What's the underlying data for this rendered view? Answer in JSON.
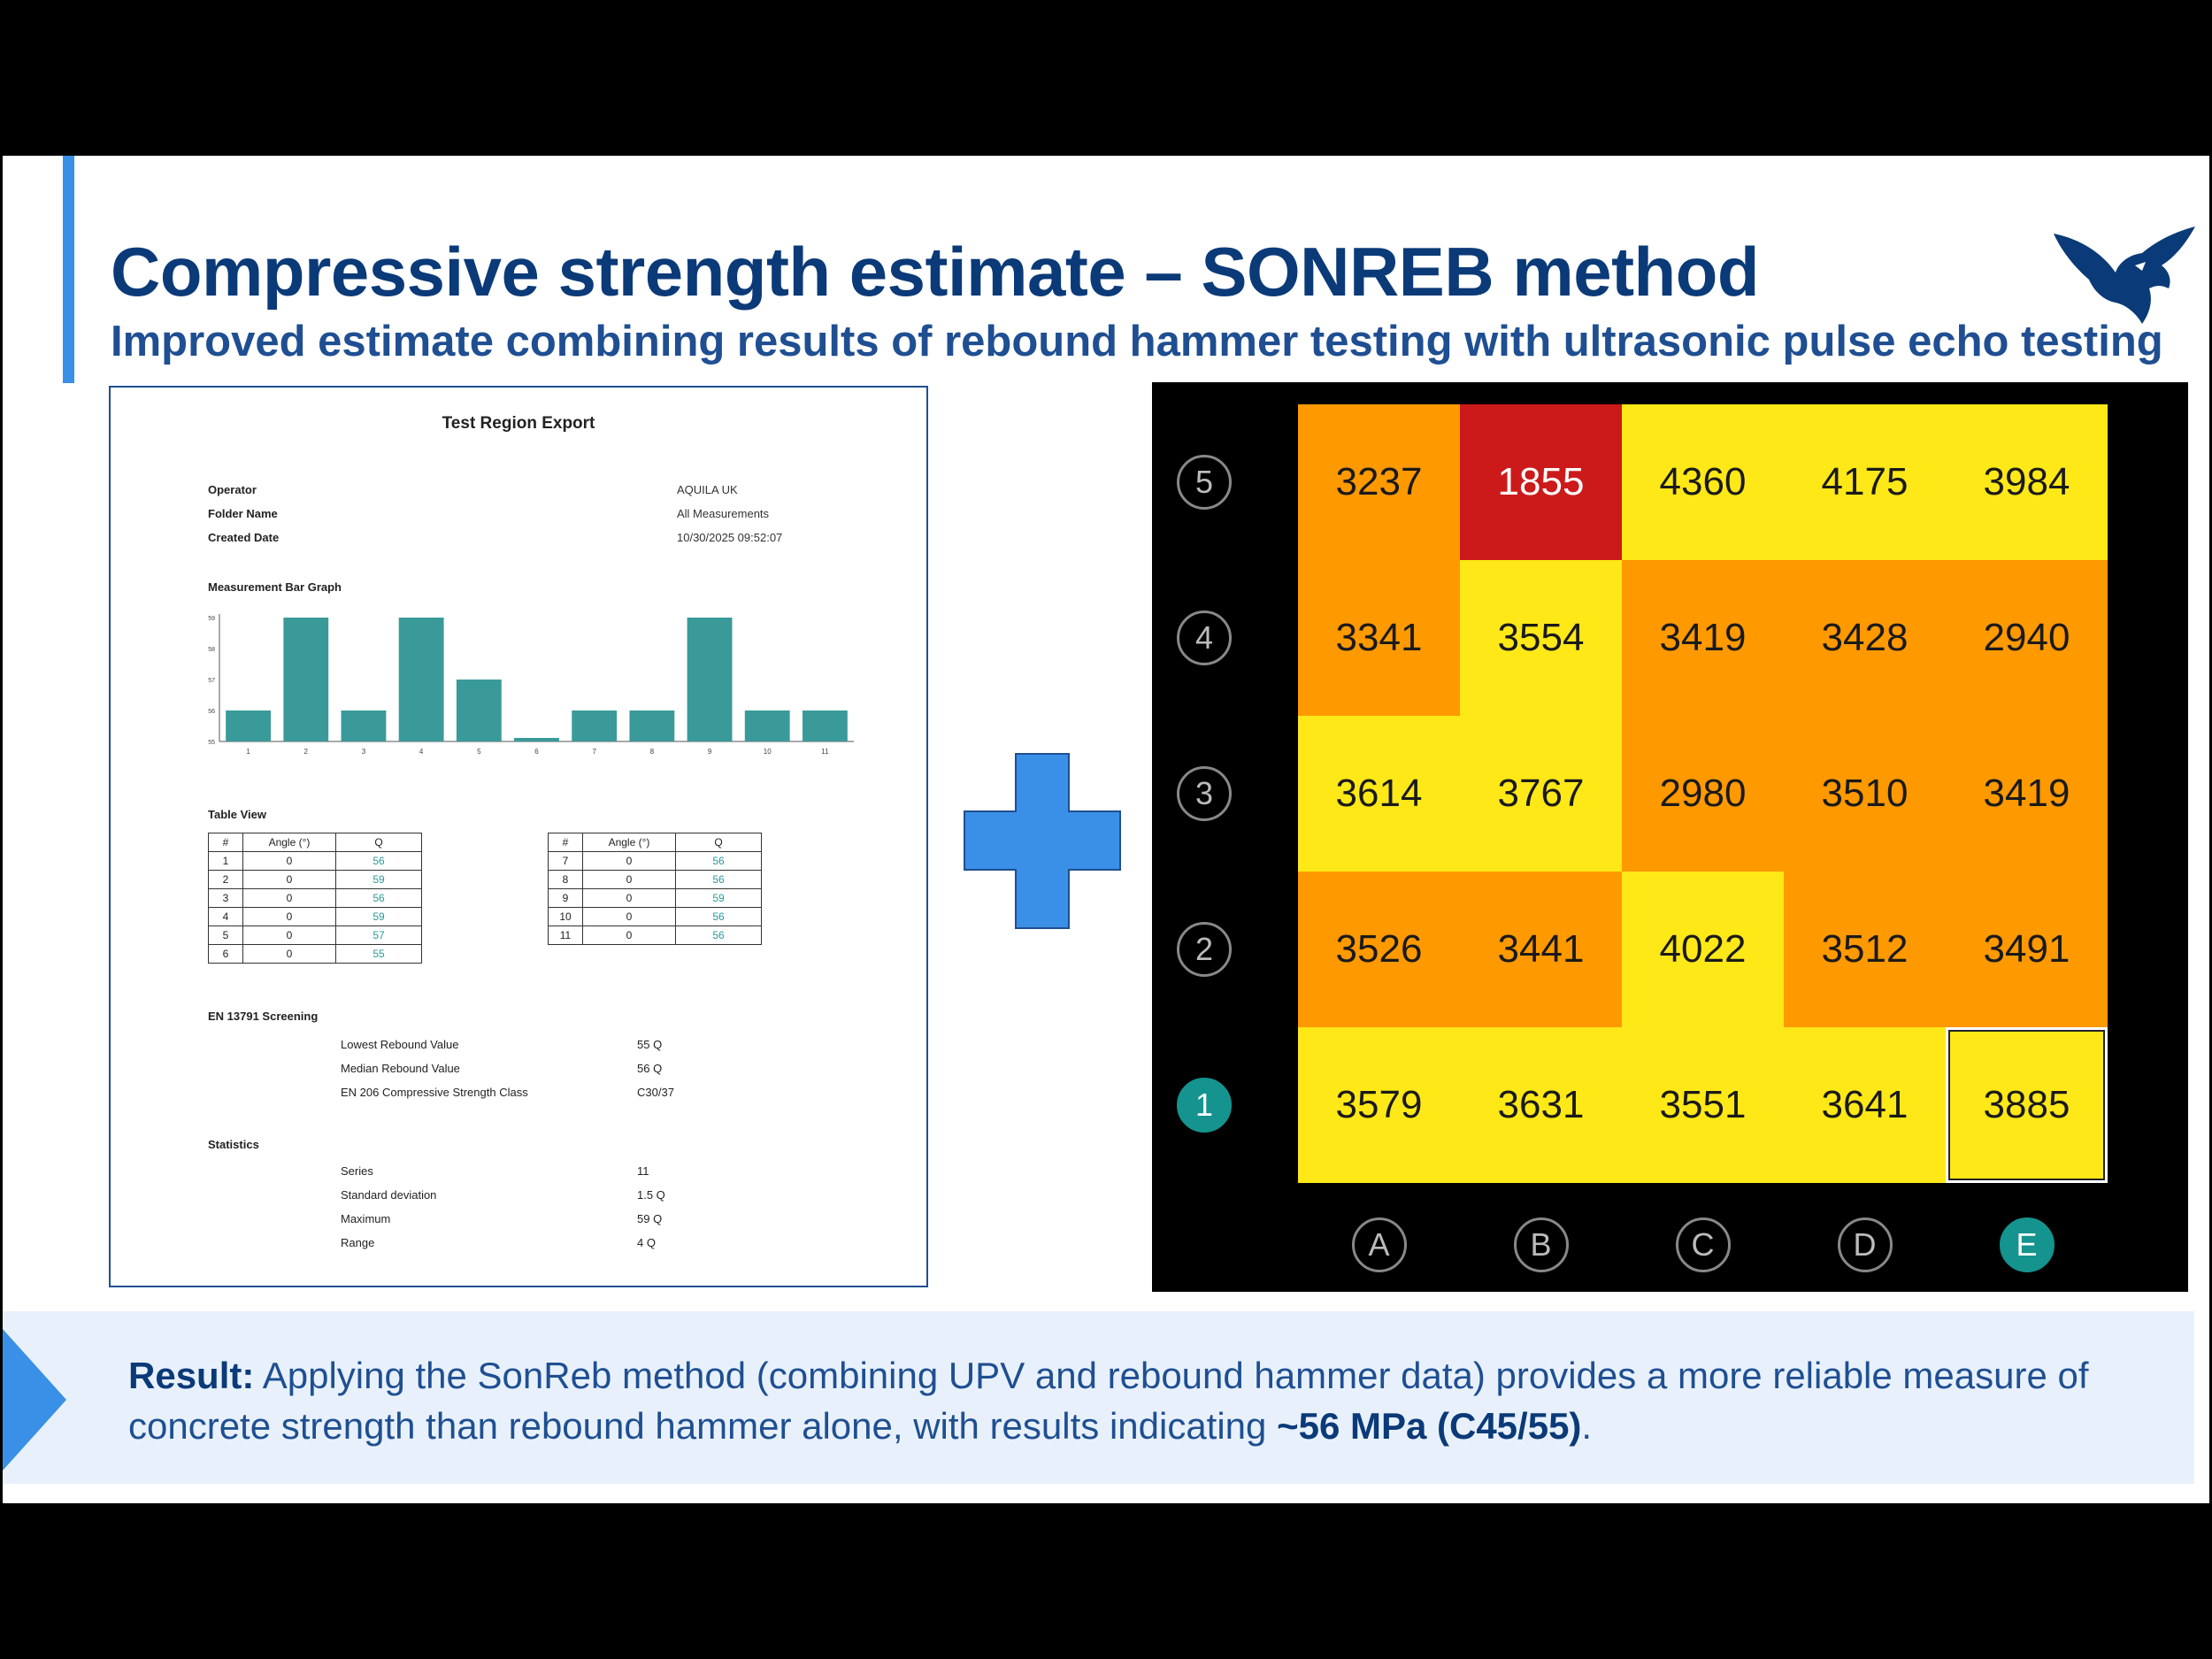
{
  "slide": {
    "title": "Compressive strength estimate – SONREB method",
    "subtitle": "Improved estimate combining results of rebound hammer testing with ultrasonic pulse echo testing",
    "colors": {
      "title": "#0b3a78",
      "accent": "#3a8fe6",
      "plus": "#3a8fe6",
      "result_bg": "#e8f1fb"
    },
    "logo_icon": "eagle-logo-icon"
  },
  "report": {
    "title": "Test Region Export",
    "meta": [
      {
        "label": "Operator",
        "value": "AQUILA UK"
      },
      {
        "label": "Folder Name",
        "value": "All Measurements"
      },
      {
        "label": "Created Date",
        "value": "10/30/2025 09:52:07"
      }
    ],
    "bar_graph_title": "Measurement Bar Graph",
    "table_view_title": "Table View",
    "table_headers": [
      "#",
      "Angle (°)",
      "Q"
    ],
    "table_left": [
      [
        "1",
        "0",
        "56"
      ],
      [
        "2",
        "0",
        "59"
      ],
      [
        "3",
        "0",
        "56"
      ],
      [
        "4",
        "0",
        "59"
      ],
      [
        "5",
        "0",
        "57"
      ],
      [
        "6",
        "0",
        "55"
      ]
    ],
    "table_right": [
      [
        "7",
        "0",
        "56"
      ],
      [
        "8",
        "0",
        "56"
      ],
      [
        "9",
        "0",
        "59"
      ],
      [
        "10",
        "0",
        "56"
      ],
      [
        "11",
        "0",
        "56"
      ]
    ],
    "screening_title": "EN 13791 Screening",
    "screening": [
      {
        "label": "Lowest Rebound Value",
        "value": "55 Q"
      },
      {
        "label": "Median Rebound Value",
        "value": "56 Q"
      },
      {
        "label": "EN 206 Compressive Strength Class",
        "value": "C30/37"
      }
    ],
    "statistics_title": "Statistics",
    "statistics": [
      {
        "label": "Series",
        "value": "11"
      },
      {
        "label": "Standard deviation",
        "value": "1.5 Q"
      },
      {
        "label": "Maximum",
        "value": "59 Q"
      },
      {
        "label": "Range",
        "value": "4 Q"
      }
    ],
    "chart_data": {
      "type": "bar",
      "categories": [
        "1",
        "2",
        "3",
        "4",
        "5",
        "6",
        "7",
        "8",
        "9",
        "10",
        "11"
      ],
      "values": [
        56,
        59,
        56,
        59,
        57,
        55,
        56,
        56,
        59,
        56,
        56
      ],
      "ylim": [
        55,
        59
      ],
      "ytick_labels": [
        "55",
        "56",
        "57",
        "58",
        "59"
      ],
      "bar_color": "#3a9a9a"
    }
  },
  "heatmap": {
    "columns": [
      "A",
      "B",
      "C",
      "D",
      "E"
    ],
    "rows": [
      "5",
      "4",
      "3",
      "2",
      "1"
    ],
    "values": [
      [
        3237,
        1855,
        4360,
        4175,
        3984
      ],
      [
        3341,
        3554,
        3419,
        3428,
        2940
      ],
      [
        3614,
        3767,
        2980,
        3510,
        3419
      ],
      [
        3526,
        3441,
        4022,
        3512,
        3491
      ],
      [
        3579,
        3631,
        3551,
        3641,
        3885
      ]
    ],
    "cell_colors": [
      [
        "#ff9900",
        "#cc1a1a",
        "#ffe817",
        "#ffe817",
        "#ffe817"
      ],
      [
        "#ff9900",
        "#ffe817",
        "#ff9900",
        "#ff9900",
        "#ff9900"
      ],
      [
        "#ffe817",
        "#ffe817",
        "#ff9900",
        "#ff9900",
        "#ff9900"
      ],
      [
        "#ff9900",
        "#ff9900",
        "#ffe817",
        "#ff9900",
        "#ff9900"
      ],
      [
        "#ffe817",
        "#ffe817",
        "#ffe817",
        "#ffe817",
        "#ffe817"
      ]
    ],
    "selected": {
      "row": "1",
      "column": "E"
    },
    "active_color": "#15938f"
  },
  "result": {
    "label": "Result:",
    "text_before": " Applying the SonReb method (combining UPV and rebound hammer data) provides a more reliable measure of concrete strength than rebound hammer alone, with results indicating ",
    "highlight": "~56 MPa (C45/55)",
    "text_after": "."
  }
}
